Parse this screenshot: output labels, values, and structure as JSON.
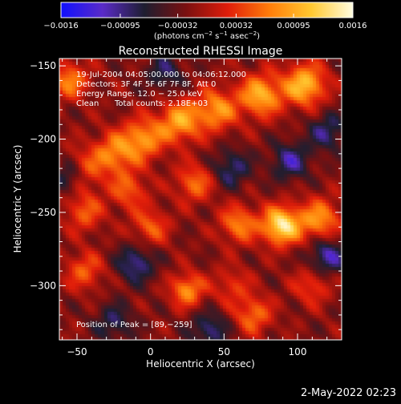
{
  "chart_data": {
    "type": "heatmap",
    "title": "Reconstructed RHESSI Image",
    "xlabel": "Heliocentric X (arcsec)",
    "ylabel": "Heliocentric Y (arcsec)",
    "xlim": [
      -62,
      130
    ],
    "ylim": [
      -337,
      -145
    ],
    "x_ticks": [
      -50,
      0,
      50,
      100
    ],
    "x_tick_labels": [
      "−50",
      "0",
      "50",
      "100"
    ],
    "y_ticks": [
      -150,
      -200,
      -250,
      -300
    ],
    "y_tick_labels": [
      "−150",
      "−200",
      "−250",
      "−300"
    ],
    "colorbar": {
      "range": [
        -0.0016,
        0.0016
      ],
      "tick_values": [
        -0.0016,
        -0.00095,
        -0.00032,
        0.00032,
        0.00095,
        0.0016
      ],
      "tick_labels": [
        "−0.0016",
        "−0.00095",
        "−0.00032",
        "0.00032",
        "0.00095",
        "0.0016"
      ],
      "unit_parts": [
        "(photons cm",
        "−2",
        " s",
        "−1",
        " asec",
        "−2",
        ")"
      ],
      "colormap": [
        "#1010ff",
        "#5a2bc8",
        "#1e1e30",
        "#7a1010",
        "#e01d0a",
        "#ff7d0a",
        "#ffc830",
        "#fffde0"
      ]
    },
    "annotations": [
      "19-Jul-2004 04:05:00.000 to 04:06:12.000",
      "Detectors: 3F 4F 5F 6F 7F 8F, Att 0",
      "Energy Range: 12.0 − 25.0 keV",
      "Clean",
      "Total counts: 2.18E+03"
    ],
    "peak_label": "Position of Peak = [89,−259]",
    "peak": [
      89,
      -259
    ],
    "features": [
      {
        "x": 75,
        "y": -170,
        "s": 10,
        "v": 0.0012
      },
      {
        "x": 105,
        "y": -163,
        "s": 10,
        "v": 0.0013
      },
      {
        "x": 45,
        "y": -180,
        "s": 10,
        "v": 0.001
      },
      {
        "x": 20,
        "y": -188,
        "s": 10,
        "v": 0.0011
      },
      {
        "x": -5,
        "y": -200,
        "s": 10,
        "v": 0.001
      },
      {
        "x": -25,
        "y": -210,
        "s": 10,
        "v": 0.0009
      },
      {
        "x": -48,
        "y": -222,
        "s": 10,
        "v": 0.0008
      },
      {
        "x": -15,
        "y": -235,
        "s": 9,
        "v": 0.0007
      },
      {
        "x": -45,
        "y": -250,
        "s": 9,
        "v": 0.0007
      },
      {
        "x": 30,
        "y": -230,
        "s": 9,
        "v": 0.0008
      },
      {
        "x": 0,
        "y": -260,
        "s": 9,
        "v": 0.0007
      },
      {
        "x": 60,
        "y": -258,
        "s": 9,
        "v": 0.0009
      },
      {
        "x": 89,
        "y": -259,
        "s": 9,
        "v": 0.0016
      },
      {
        "x": 115,
        "y": -255,
        "s": 10,
        "v": 0.001
      },
      {
        "x": 25,
        "y": -303,
        "s": 8,
        "v": 0.001
      },
      {
        "x": -45,
        "y": -290,
        "s": 9,
        "v": 0.0007
      },
      {
        "x": 70,
        "y": -320,
        "s": 9,
        "v": 0.0008
      },
      {
        "x": 110,
        "y": -300,
        "s": 9,
        "v": 0.0006
      },
      {
        "x": -55,
        "y": -160,
        "s": 9,
        "v": 0.0009
      },
      {
        "x": 55,
        "y": -300,
        "s": 9,
        "v": 0.0005
      },
      {
        "x": -55,
        "y": -225,
        "s": 8,
        "v": -0.001
      },
      {
        "x": -10,
        "y": -285,
        "s": 9,
        "v": -0.0008
      },
      {
        "x": 120,
        "y": -280,
        "s": 9,
        "v": -0.0009
      },
      {
        "x": 95,
        "y": -215,
        "s": 9,
        "v": -0.0008
      },
      {
        "x": 55,
        "y": -220,
        "s": 9,
        "v": -0.0007
      },
      {
        "x": 40,
        "y": -330,
        "s": 9,
        "v": -0.0007
      },
      {
        "x": -25,
        "y": -325,
        "s": 9,
        "v": -0.0006
      },
      {
        "x": 10,
        "y": -155,
        "s": 9,
        "v": -0.0006
      },
      {
        "x": 120,
        "y": -195,
        "s": 9,
        "v": -0.0007
      }
    ]
  },
  "footer": {
    "date": "2-May-2022 02:23"
  }
}
